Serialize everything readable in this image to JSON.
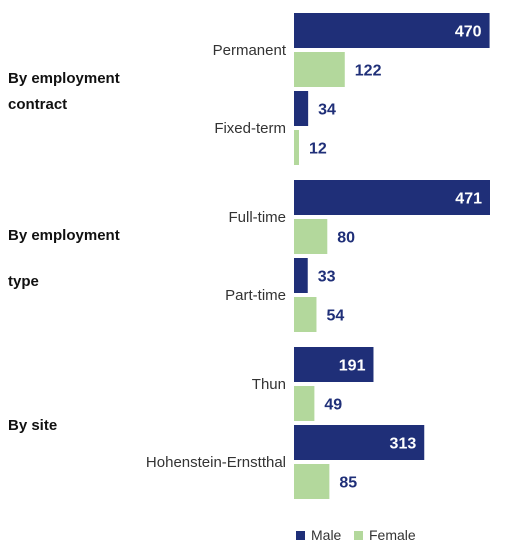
{
  "chart_data": {
    "type": "bar",
    "orientation": "horizontal",
    "colors": {
      "male": "#1f2f78",
      "female": "#b3d89c"
    },
    "groups": [
      {
        "label_lines": [
          "By employment",
          "contract"
        ],
        "categories": [
          {
            "name": "Permanent",
            "male": 470,
            "female": 122
          },
          {
            "name": "Fixed-term",
            "male": 34,
            "female": 12
          }
        ]
      },
      {
        "label_lines": [
          "By employment",
          "type"
        ],
        "categories": [
          {
            "name": "Full-time",
            "male": 471,
            "female": 80
          },
          {
            "name": "Part-time",
            "male": 33,
            "female": 54
          }
        ]
      },
      {
        "label_lines": [
          "By site"
        ],
        "categories": [
          {
            "name": "Thun",
            "male": 191,
            "female": 49
          },
          {
            "name": "Hohenstein-Ernstthal",
            "male": 313,
            "female": 85
          }
        ]
      }
    ],
    "series": [
      {
        "name": "Male",
        "key": "male"
      },
      {
        "name": "Female",
        "key": "female"
      }
    ],
    "xlim": [
      0,
      471
    ],
    "legend": "bottom-right"
  }
}
